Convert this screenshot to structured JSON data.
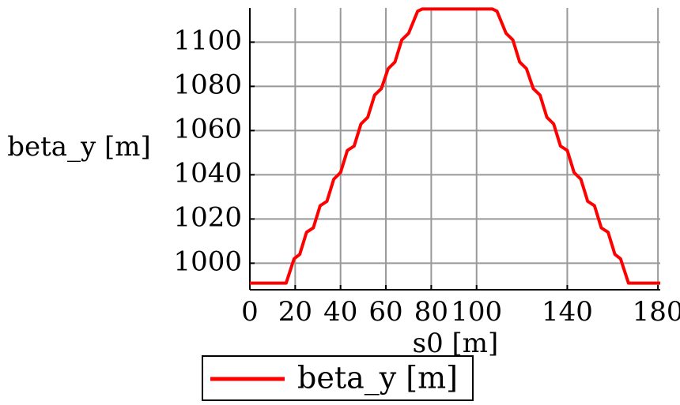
{
  "chart_data": {
    "type": "line",
    "xlabel": "s0 [m]",
    "ylabel": "beta_y [m]",
    "x": [
      0,
      16,
      19.5,
      22,
      25,
      28,
      31,
      34,
      37,
      40,
      43,
      46,
      49,
      52,
      55,
      58,
      61,
      64,
      67,
      70,
      74,
      76,
      107,
      109,
      113,
      116,
      119,
      122,
      125,
      128,
      131,
      134,
      137,
      140,
      143,
      146,
      149,
      152,
      155,
      158,
      161,
      163.5,
      167,
      181
    ],
    "series": [
      {
        "name": "beta_y [m]",
        "color": "#ff0000",
        "values": [
          991,
          991,
          1002,
          1004,
          1014,
          1016,
          1026,
          1028,
          1038,
          1041,
          1051,
          1053,
          1063,
          1066,
          1076,
          1079,
          1088,
          1091,
          1101,
          1104,
          1114,
          1115,
          1115,
          1114,
          1104,
          1101,
          1091,
          1088,
          1079,
          1076,
          1066,
          1063,
          1053,
          1051,
          1041,
          1038,
          1028,
          1026,
          1016,
          1014,
          1004,
          1002,
          991,
          991
        ]
      }
    ],
    "xlim": [
      0,
      181
    ],
    "xticks": [
      0,
      20,
      40,
      60,
      80,
      100,
      140,
      180
    ],
    "ylim": [
      988,
      1115.5
    ],
    "yticks": [
      1000,
      1020,
      1040,
      1060,
      1080,
      1100
    ],
    "grid": true
  }
}
